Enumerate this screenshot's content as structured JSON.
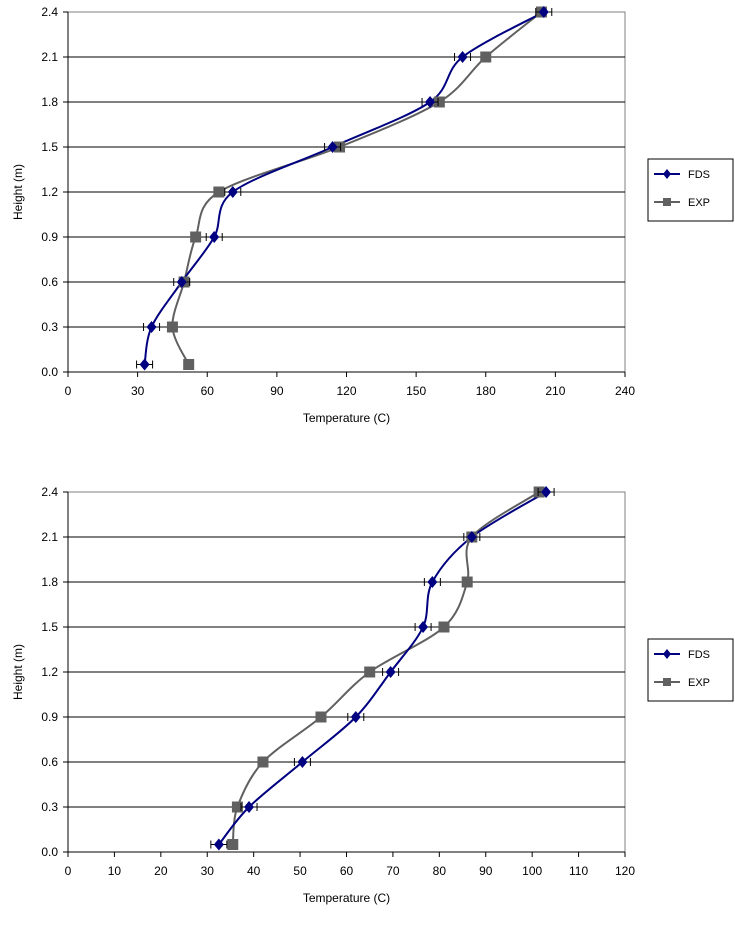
{
  "chart_data": [
    {
      "type": "line",
      "xlabel": "Temperature  (C)",
      "ylabel": "Height (m)",
      "xlim": [
        0,
        240
      ],
      "ylim": [
        0,
        2.4
      ],
      "x_ticks": [
        "0",
        "30",
        "60",
        "90",
        "120",
        "150",
        "180",
        "210",
        "240"
      ],
      "y_ticks": [
        "0.0",
        "0.3",
        "0.6",
        "0.9",
        "1.2",
        "1.5",
        "1.8",
        "2.1",
        "2.4"
      ],
      "grid": "horizontal",
      "legend": "right",
      "series": [
        {
          "name": "FDS",
          "color": "#000080",
          "marker": "diamond",
          "error_bars": "horizontal",
          "points": [
            {
              "x": 33,
              "y": 0.05
            },
            {
              "x": 36,
              "y": 0.3
            },
            {
              "x": 49,
              "y": 0.6
            },
            {
              "x": 63,
              "y": 0.9
            },
            {
              "x": 71,
              "y": 1.2
            },
            {
              "x": 114,
              "y": 1.5
            },
            {
              "x": 156,
              "y": 1.8
            },
            {
              "x": 170,
              "y": 2.1
            },
            {
              "x": 205,
              "y": 2.4
            }
          ]
        },
        {
          "name": "EXP",
          "color": "#606060",
          "marker": "square",
          "points": [
            {
              "x": 52,
              "y": 0.05
            },
            {
              "x": 45,
              "y": 0.3
            },
            {
              "x": 50,
              "y": 0.6
            },
            {
              "x": 55,
              "y": 0.9
            },
            {
              "x": 65,
              "y": 1.2
            },
            {
              "x": 117,
              "y": 1.5
            },
            {
              "x": 160,
              "y": 1.8
            },
            {
              "x": 180,
              "y": 2.1
            },
            {
              "x": 204,
              "y": 2.4
            }
          ]
        }
      ]
    },
    {
      "type": "line",
      "xlabel": "Temperature  (C)",
      "ylabel": "Height (m)",
      "xlim": [
        0,
        120
      ],
      "ylim": [
        0,
        2.4
      ],
      "x_ticks": [
        "0",
        "10",
        "20",
        "30",
        "40",
        "50",
        "60",
        "70",
        "80",
        "90",
        "100",
        "110",
        "120"
      ],
      "y_ticks": [
        "0.0",
        "0.3",
        "0.6",
        "0.9",
        "1.2",
        "1.5",
        "1.8",
        "2.1",
        "2.4"
      ],
      "grid": "horizontal",
      "legend": "right",
      "series": [
        {
          "name": "FDS",
          "color": "#000080",
          "marker": "diamond",
          "error_bars": "horizontal",
          "points": [
            {
              "x": 32.5,
              "y": 0.05
            },
            {
              "x": 39,
              "y": 0.3
            },
            {
              "x": 50.5,
              "y": 0.6
            },
            {
              "x": 62,
              "y": 0.9
            },
            {
              "x": 69.5,
              "y": 1.2
            },
            {
              "x": 76.5,
              "y": 1.5
            },
            {
              "x": 78.5,
              "y": 1.8
            },
            {
              "x": 87,
              "y": 2.1
            },
            {
              "x": 103,
              "y": 2.4
            }
          ]
        },
        {
          "name": "EXP",
          "color": "#606060",
          "marker": "square",
          "points": [
            {
              "x": 35.5,
              "y": 0.05
            },
            {
              "x": 36.5,
              "y": 0.3
            },
            {
              "x": 42,
              "y": 0.6
            },
            {
              "x": 54.5,
              "y": 0.9
            },
            {
              "x": 65,
              "y": 1.2
            },
            {
              "x": 81,
              "y": 1.5
            },
            {
              "x": 86,
              "y": 1.8
            },
            {
              "x": 87,
              "y": 2.1
            },
            {
              "x": 101.5,
              "y": 2.4
            }
          ]
        }
      ]
    }
  ]
}
